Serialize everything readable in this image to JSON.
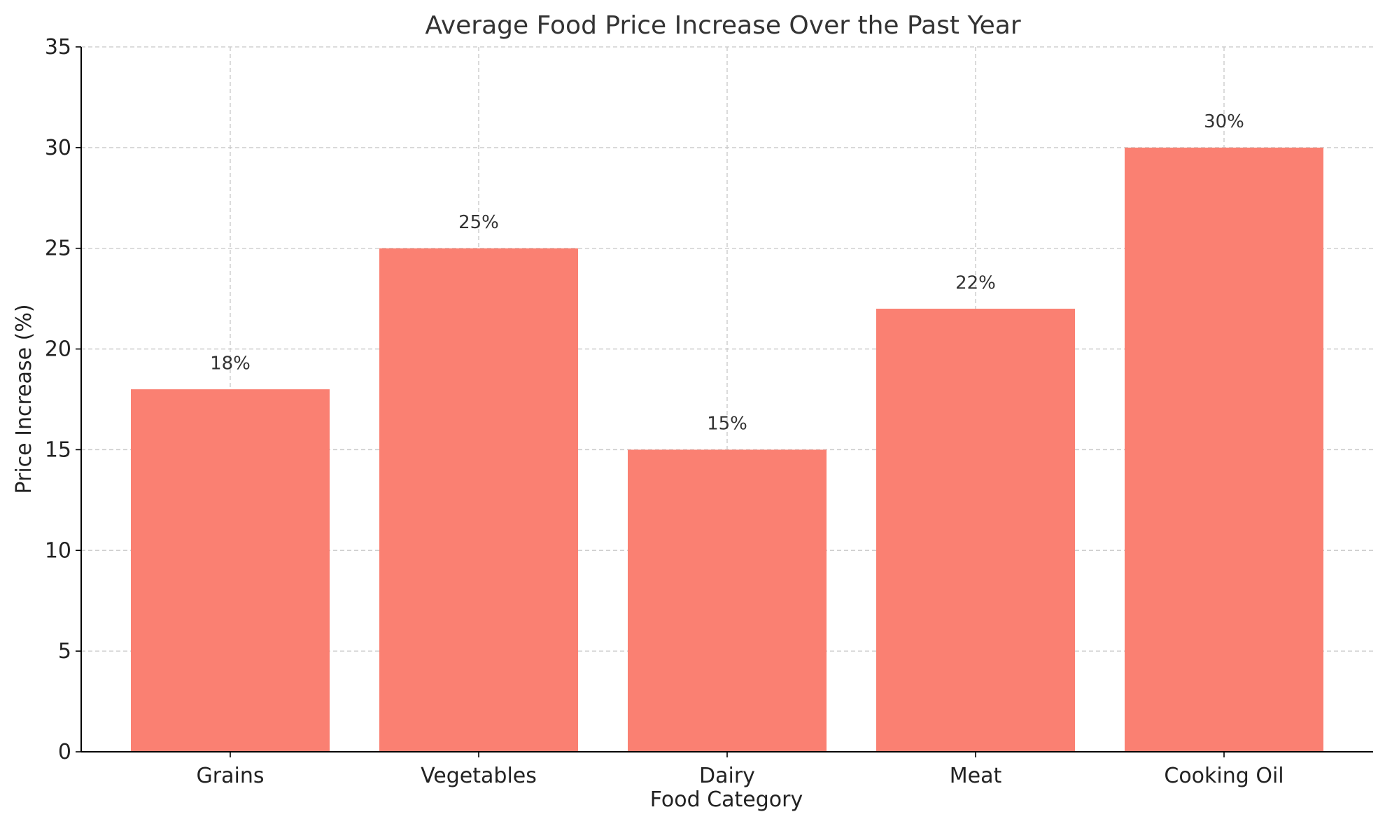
{
  "chart_data": {
    "type": "bar",
    "title": "Average Food Price Increase Over the Past Year",
    "xlabel": "Food Category",
    "ylabel": "Price Increase (%)",
    "categories": [
      "Grains",
      "Vegetables",
      "Dairy",
      "Meat",
      "Cooking Oil"
    ],
    "values": [
      18,
      25,
      15,
      22,
      30
    ],
    "data_labels": [
      "18%",
      "25%",
      "15%",
      "22%",
      "30%"
    ],
    "ylim": [
      0,
      35
    ],
    "yticks": [
      0,
      5,
      10,
      15,
      20,
      25,
      30,
      35
    ],
    "grid": true,
    "bar_color": "#fa8072"
  }
}
